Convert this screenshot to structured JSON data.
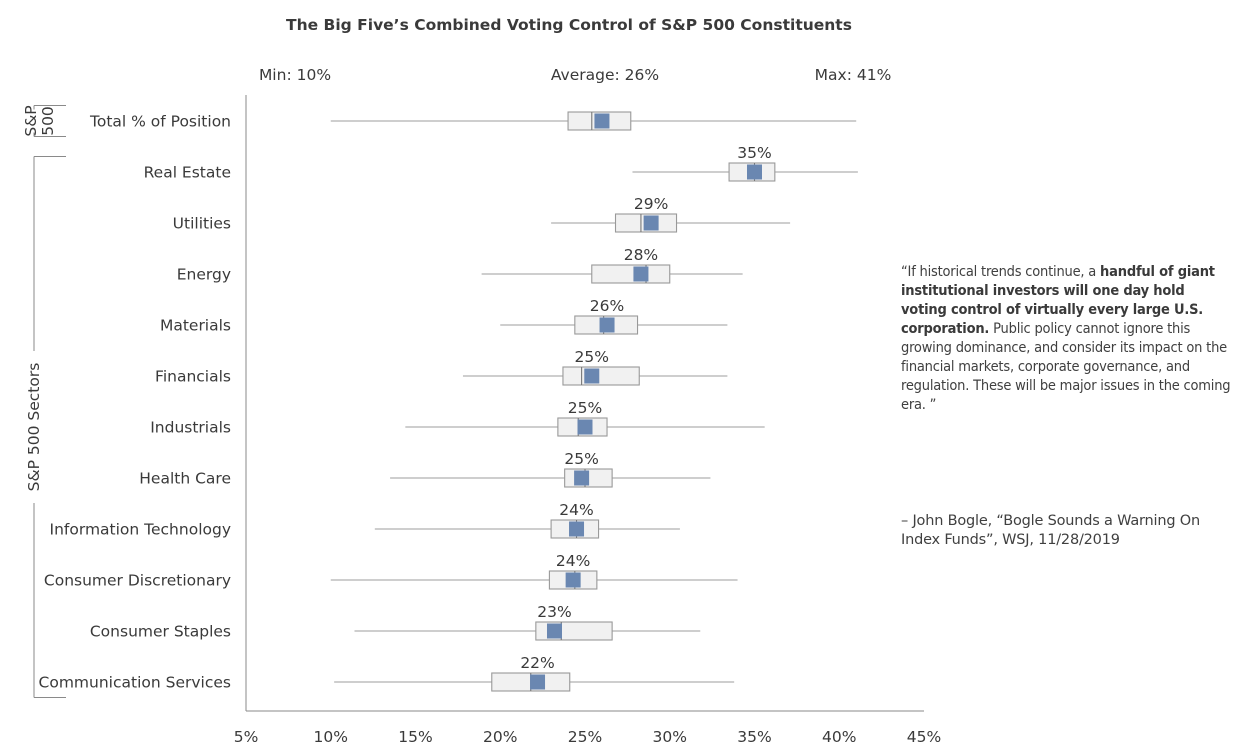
{
  "chart_data": {
    "type": "box",
    "title": "The Big Five’s Combined Voting Control of S&P 500 Constituents",
    "summary": {
      "min_label": "Min: 10%",
      "average_label": "Average: 26%",
      "max_label": "Max: 41%"
    },
    "groups": [
      {
        "label": "S&P 500",
        "rows": [
          0
        ]
      },
      {
        "label": "S&P 500 Sectors",
        "rows": [
          1,
          2,
          3,
          4,
          5,
          6,
          7,
          8,
          9,
          10,
          11
        ]
      }
    ],
    "rows": [
      {
        "label": "Total % of Position",
        "min": 10,
        "q1": 24,
        "median": 25.4,
        "q3": 27.7,
        "max": 41,
        "mean": 26,
        "mean_label": ""
      },
      {
        "label": "Real Estate",
        "min": 27.8,
        "q1": 33.5,
        "median": 35,
        "q3": 36.2,
        "max": 41.1,
        "mean": 35,
        "mean_label": "35%"
      },
      {
        "label": "Utilities",
        "min": 23,
        "q1": 26.8,
        "median": 28.3,
        "q3": 30.4,
        "max": 37.1,
        "mean": 28.9,
        "mean_label": "29%"
      },
      {
        "label": "Energy",
        "min": 18.9,
        "q1": 25.4,
        "median": 28.6,
        "q3": 30,
        "max": 34.3,
        "mean": 28.3,
        "mean_label": "28%"
      },
      {
        "label": "Materials",
        "min": 20,
        "q1": 24.4,
        "median": 26.1,
        "q3": 28.1,
        "max": 33.4,
        "mean": 26.3,
        "mean_label": "26%"
      },
      {
        "label": "Financials",
        "min": 17.8,
        "q1": 23.7,
        "median": 24.8,
        "q3": 28.2,
        "max": 33.4,
        "mean": 25.4,
        "mean_label": "25%"
      },
      {
        "label": "Industrials",
        "min": 14.4,
        "q1": 23.4,
        "median": 24.6,
        "q3": 26.3,
        "max": 35.6,
        "mean": 25,
        "mean_label": "25%"
      },
      {
        "label": "Health Care",
        "min": 13.5,
        "q1": 23.8,
        "median": 25,
        "q3": 26.6,
        "max": 32.4,
        "mean": 24.8,
        "mean_label": "25%"
      },
      {
        "label": "Information Technology",
        "min": 12.6,
        "q1": 23,
        "median": 24.5,
        "q3": 25.8,
        "max": 30.6,
        "mean": 24.5,
        "mean_label": "24%"
      },
      {
        "label": "Consumer Discretionary",
        "min": 10,
        "q1": 22.9,
        "median": 24.4,
        "q3": 25.7,
        "max": 34,
        "mean": 24.3,
        "mean_label": "24%"
      },
      {
        "label": "Consumer Staples",
        "min": 11.4,
        "q1": 22.1,
        "median": 23.6,
        "q3": 26.6,
        "max": 31.8,
        "mean": 23.2,
        "mean_label": "23%"
      },
      {
        "label": "Communication Services",
        "min": 10.2,
        "q1": 19.5,
        "median": 21.8,
        "q3": 24.1,
        "max": 33.8,
        "mean": 22.2,
        "mean_label": "22%"
      }
    ],
    "x_ticks": [
      "5%",
      "10%",
      "15%",
      "20%",
      "25%",
      "30%",
      "35%",
      "40%",
      "45%"
    ],
    "xlim": [
      5,
      45
    ],
    "grid": false,
    "colors": {
      "mean_marker": "#6a87b1",
      "box_fill": "#f1f1f1",
      "box_stroke": "#999999",
      "whisker": "#9e9e9e",
      "axis": "#8a8a8a",
      "text": "#3a3a3a"
    }
  },
  "quote": {
    "open": "“If historical trends continue, a ",
    "bold": "handful of giant institutional investors will one day hold voting control of virtually every large U.S. corporation.",
    "rest": " Public policy cannot ignore this growing dominance, and consider its impact on the financial markets, corporate governance, and regulation. These will be major issues in the coming era. ”",
    "attribution": "– John Bogle, “Bogle Sounds a Warning On Index Funds”, WSJ, 11/28/2019"
  }
}
